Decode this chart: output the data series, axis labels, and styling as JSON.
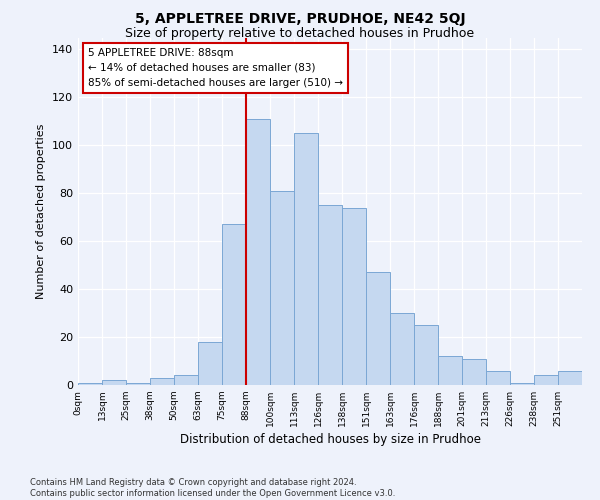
{
  "title": "5, APPLETREE DRIVE, PRUDHOE, NE42 5QJ",
  "subtitle": "Size of property relative to detached houses in Prudhoe",
  "xlabel": "Distribution of detached houses by size in Prudhoe",
  "ylabel": "Number of detached properties",
  "bin_labels": [
    "0sqm",
    "13sqm",
    "25sqm",
    "38sqm",
    "50sqm",
    "63sqm",
    "75sqm",
    "88sqm",
    "100sqm",
    "113sqm",
    "126sqm",
    "138sqm",
    "151sqm",
    "163sqm",
    "176sqm",
    "188sqm",
    "201sqm",
    "213sqm",
    "226sqm",
    "238sqm",
    "251sqm"
  ],
  "bar_heights": [
    1,
    2,
    1,
    3,
    4,
    18,
    67,
    111,
    81,
    105,
    75,
    74,
    47,
    30,
    25,
    12,
    11,
    6,
    1,
    4,
    6
  ],
  "bar_color": "#c5d8f0",
  "bar_edgecolor": "#7ba7d4",
  "vline_x": 7,
  "vline_color": "#cc0000",
  "annotation_text": "5 APPLETREE DRIVE: 88sqm\n← 14% of detached houses are smaller (83)\n85% of semi-detached houses are larger (510) →",
  "annotation_box_edgecolor": "#cc0000",
  "annotation_box_facecolor": "#ffffff",
  "footnote": "Contains HM Land Registry data © Crown copyright and database right 2024.\nContains public sector information licensed under the Open Government Licence v3.0.",
  "bg_color": "#eef2fb",
  "ylim": [
    0,
    145
  ],
  "yticks": [
    0,
    20,
    40,
    60,
    80,
    100,
    120,
    140
  ],
  "title_fontsize": 10,
  "subtitle_fontsize": 9
}
